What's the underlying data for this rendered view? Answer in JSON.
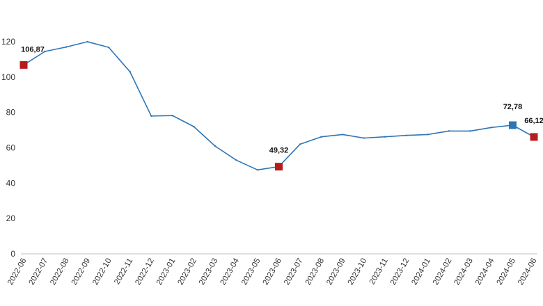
{
  "chart_data": {
    "type": "line",
    "title": "",
    "xlabel": "",
    "ylabel": "",
    "ylim": [
      0,
      120
    ],
    "yticks": [
      0,
      20,
      40,
      60,
      80,
      100,
      120
    ],
    "grid": false,
    "categories": [
      "2022-06",
      "2022-07",
      "2022-08",
      "2022-09",
      "2022-10",
      "2022-11",
      "2022-12",
      "2023-01",
      "2023-02",
      "2023-03",
      "2023-04",
      "2023-05",
      "2023-06",
      "2023-07",
      "2023-08",
      "2023-09",
      "2023-10",
      "2023-11",
      "2023-12",
      "2024-01",
      "2024-02",
      "2024-03",
      "2024-04",
      "2024-05",
      "2024-06"
    ],
    "series": [
      {
        "name": "",
        "color": "#2e75b6",
        "values": [
          106.87,
          114.5,
          117.0,
          120.0,
          116.8,
          103.0,
          78.0,
          78.2,
          72.0,
          61.0,
          53.0,
          47.5,
          49.32,
          62.0,
          66.2,
          67.5,
          65.5,
          66.2,
          67.0,
          67.5,
          69.5,
          69.5,
          71.5,
          72.78,
          66.12
        ]
      }
    ],
    "highlights": [
      {
        "index": 0,
        "label": "106,87",
        "color": "#b71c1c"
      },
      {
        "index": 12,
        "label": "49,32",
        "color": "#b71c1c"
      },
      {
        "index": 23,
        "label": "72,78",
        "color": "#2e75b6"
      },
      {
        "index": 24,
        "label": "66,12",
        "color": "#b71c1c"
      }
    ]
  }
}
